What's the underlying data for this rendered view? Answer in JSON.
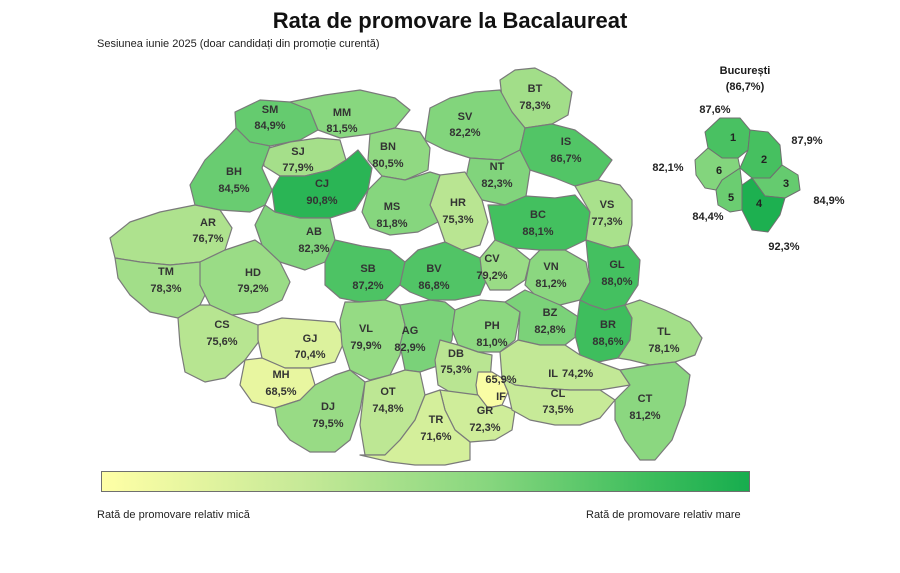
{
  "title": "Rata de promovare la Bacalaureat",
  "subtitle": "Sesiunea iunie 2025 (doar candidați din promoție curentă)",
  "legend": {
    "low_label": "Rată de promovare relativ mică",
    "high_label": "Rată de promovare relativ mare",
    "low_color": "#ffffa6",
    "high_color": "#17ad4e"
  },
  "counties": [
    {
      "code": "SM",
      "value": "84,9%"
    },
    {
      "code": "MM",
      "value": "81,5%"
    },
    {
      "code": "BT",
      "value": "78,3%"
    },
    {
      "code": "SV",
      "value": "82,2%"
    },
    {
      "code": "BN",
      "value": "80,5%"
    },
    {
      "code": "SJ",
      "value": "77,9%"
    },
    {
      "code": "IS",
      "value": "86,7%"
    },
    {
      "code": "BH",
      "value": "84,5%"
    },
    {
      "code": "CJ",
      "value": "90,8%"
    },
    {
      "code": "NT",
      "value": "82,3%"
    },
    {
      "code": "HR",
      "value": "75,3%"
    },
    {
      "code": "MS",
      "value": "81,8%"
    },
    {
      "code": "BC",
      "value": "88,1%"
    },
    {
      "code": "VS",
      "value": "77,3%"
    },
    {
      "code": "AR",
      "value": "76,7%"
    },
    {
      "code": "AB",
      "value": "82,3%"
    },
    {
      "code": "TM",
      "value": "78,3%"
    },
    {
      "code": "HD",
      "value": "79,2%"
    },
    {
      "code": "SB",
      "value": "87,2%"
    },
    {
      "code": "BV",
      "value": "86,8%"
    },
    {
      "code": "CV",
      "value": "79,2%"
    },
    {
      "code": "VN",
      "value": "81,2%"
    },
    {
      "code": "GL",
      "value": "88,0%"
    },
    {
      "code": "CS",
      "value": "75,6%"
    },
    {
      "code": "GJ",
      "value": "70,4%"
    },
    {
      "code": "VL",
      "value": "79,9%"
    },
    {
      "code": "AG",
      "value": "82,9%"
    },
    {
      "code": "PH",
      "value": "81,0%"
    },
    {
      "code": "BZ",
      "value": "82,8%"
    },
    {
      "code": "BR",
      "value": "88,6%"
    },
    {
      "code": "TL",
      "value": "78,1%"
    },
    {
      "code": "MH",
      "value": "68,5%"
    },
    {
      "code": "DB",
      "value": "75,3%"
    },
    {
      "code": "IF",
      "value": "65,9%"
    },
    {
      "code": "IL",
      "value": "74,2%"
    },
    {
      "code": "DJ",
      "value": "79,5%"
    },
    {
      "code": "OT",
      "value": "74,8%"
    },
    {
      "code": "GR",
      "value": "72,3%"
    },
    {
      "code": "CL",
      "value": "73,5%"
    },
    {
      "code": "CT",
      "value": "81,2%"
    },
    {
      "code": "TR",
      "value": "71,6%"
    }
  ],
  "bucuresti": {
    "name": "București",
    "total": "(86,7%)",
    "sectors": [
      {
        "num": "1",
        "value": "87,6%"
      },
      {
        "num": "2",
        "value": "87,9%"
      },
      {
        "num": "3",
        "value": "84,9%"
      },
      {
        "num": "4",
        "value": "92,3%"
      },
      {
        "num": "5",
        "value": "84,4%"
      },
      {
        "num": "6",
        "value": "82,1%"
      }
    ]
  }
}
